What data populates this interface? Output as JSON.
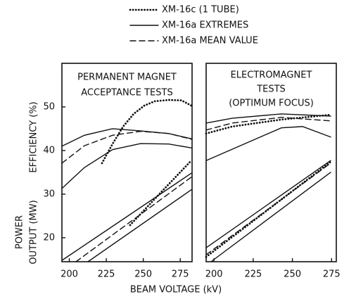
{
  "chart_data": [
    {
      "type": "line",
      "legend": [
        {
          "name": "XM-16c (1 TUBE)",
          "style": "dotted"
        },
        {
          "name": "XM-16a EXTREMES",
          "style": "solid"
        },
        {
          "name": "XM-16a MEAN VALUE",
          "style": "dashed"
        }
      ],
      "annotations": [
        "PERMANENT MAGNET",
        "ACCEPTANCE TESTS"
      ],
      "ylabels": [
        "EFFICIENCY (%)",
        "POWER",
        "OUTPUT (MW)"
      ],
      "xlabel": "BEAM VOLTAGE (kV)",
      "xlim": [
        195,
        283
      ],
      "xticks": [
        200,
        225,
        250,
        275
      ],
      "ylim": [
        14.5,
        60
      ],
      "yticks": [
        20,
        30,
        40,
        50
      ],
      "series": [
        {
          "style": "solid",
          "color": "#111111",
          "x": [
            195,
            210.2,
            229.2,
            248.2,
            267.2,
            282.5
          ],
          "values": [
            41.0,
            43.5,
            45.0,
            44.5,
            43.9,
            42.7
          ]
        },
        {
          "style": "dashed",
          "color": "#111111",
          "x": [
            195,
            210.2,
            229.2,
            248.2,
            267.2,
            282.5
          ],
          "values": [
            37.1,
            41.1,
            43.5,
            44.4,
            43.9,
            42.6
          ]
        },
        {
          "style": "solid",
          "color": "#111111",
          "x": [
            195,
            210.2,
            229.2,
            248.2,
            267.2,
            282.5
          ],
          "values": [
            31.3,
            36.1,
            40.2,
            41.6,
            41.5,
            40.6
          ]
        },
        {
          "style": "dotted",
          "color": "#111111",
          "x": [
            222.1,
            229.2,
            236.4,
            243.5,
            250.7,
            257.8,
            267.3,
            275.9,
            282.5
          ],
          "values": [
            37.1,
            41.5,
            45.5,
            48.4,
            50.3,
            51.3,
            51.6,
            51.5,
            50.3
          ]
        },
        {
          "style": "solid",
          "color": "#111111",
          "x": [
            195,
            282.5
          ],
          "values": [
            14.8,
            34.8
          ]
        },
        {
          "style": "dashed",
          "color": "#111111",
          "x": [
            204.5,
            282.5
          ],
          "values": [
            14.5,
            33.9
          ]
        },
        {
          "style": "solid",
          "color": "#111111",
          "x": [
            212.6,
            282.5
          ],
          "values": [
            14.5,
            31.0
          ]
        },
        {
          "style": "dotted",
          "color": "#111111",
          "x": [
            241.1,
            262.5,
            282.5
          ],
          "values": [
            22.9,
            30.6,
            37.7
          ]
        }
      ]
    },
    {
      "type": "line",
      "annotations": [
        "ELECTROMAGNET",
        "TESTS",
        "(OPTIMUM FOCUS)"
      ],
      "xlim": [
        195,
        278
      ],
      "xticks": [
        200,
        225,
        250,
        275
      ],
      "ylim": [
        14.5,
        60
      ],
      "series": [
        {
          "style": "solid",
          "color": "#111111",
          "x": [
            195,
            211.6,
            243,
            274.4
          ],
          "values": [
            46.3,
            47.4,
            48.4,
            47.9
          ]
        },
        {
          "style": "dashed",
          "color": "#111111",
          "x": [
            195,
            211.6,
            243,
            274.4
          ],
          "values": [
            44.7,
            46.3,
            47.6,
            46.8
          ]
        },
        {
          "style": "dotted",
          "color": "#111111",
          "x": [
            195,
            211.6,
            243,
            274.4
          ],
          "values": [
            43.9,
            45.5,
            47.1,
            48.2
          ]
        },
        {
          "style": "solid",
          "color": "#111111",
          "x": [
            195,
            211.6,
            243,
            256.5,
            274.4
          ],
          "values": [
            37.7,
            40.3,
            45.2,
            45.5,
            43.1
          ]
        },
        {
          "style": "solid",
          "color": "#111111",
          "x": [
            195,
            274.4
          ],
          "values": [
            17.7,
            37.7
          ]
        },
        {
          "style": "dashed",
          "color": "#111111",
          "x": [
            195,
            274.4
          ],
          "values": [
            16.1,
            37.1
          ]
        },
        {
          "style": "dotted",
          "color": "#111111",
          "x": [
            195,
            274.4
          ],
          "values": [
            15.6,
            37.4
          ]
        },
        {
          "style": "solid",
          "color": "#111111",
          "x": [
            198.1,
            274.4
          ],
          "values": [
            14.5,
            35.0
          ]
        }
      ]
    }
  ]
}
